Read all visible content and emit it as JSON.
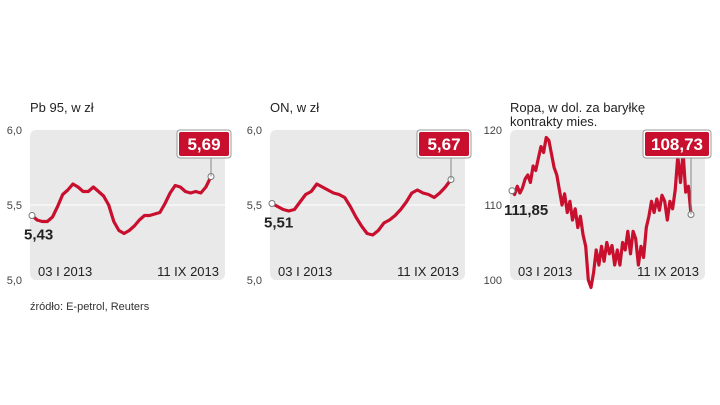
{
  "source": "źródło: E-petrol, Reuters",
  "colors": {
    "line": "#c8102e",
    "panel": "#e9e9e9",
    "grid": "#ffffff",
    "text": "#222222"
  },
  "chart_data": [
    {
      "type": "line",
      "title": "Pb 95, w zł",
      "yticks": [
        "6,0",
        "5,5",
        "5,0"
      ],
      "ylim": [
        5.0,
        6.0
      ],
      "x_labels": [
        "03 I 2013",
        "11 IX 2013"
      ],
      "start_value": 5.43,
      "start_label": "5,43",
      "end_value": 5.69,
      "end_label": "5,69",
      "series": [
        {
          "values": [
            5.43,
            5.4,
            5.39,
            5.39,
            5.42,
            5.49,
            5.57,
            5.6,
            5.64,
            5.62,
            5.59,
            5.59,
            5.62,
            5.59,
            5.56,
            5.5,
            5.39,
            5.33,
            5.31,
            5.33,
            5.36,
            5.4,
            5.43,
            5.43,
            5.44,
            5.45,
            5.51,
            5.58,
            5.63,
            5.62,
            5.59,
            5.58,
            5.59,
            5.58,
            5.62,
            5.69
          ]
        }
      ]
    },
    {
      "type": "line",
      "title": "ON, w zł",
      "yticks": [
        "6,0",
        "5,5",
        "5,0"
      ],
      "ylim": [
        5.0,
        6.0
      ],
      "x_labels": [
        "03 I 2013",
        "11 IX 2013"
      ],
      "start_value": 5.51,
      "start_label": "5,51",
      "end_value": 5.67,
      "end_label": "5,67",
      "series": [
        {
          "values": [
            5.51,
            5.49,
            5.47,
            5.46,
            5.47,
            5.52,
            5.57,
            5.59,
            5.64,
            5.62,
            5.6,
            5.58,
            5.57,
            5.55,
            5.49,
            5.42,
            5.36,
            5.31,
            5.3,
            5.33,
            5.38,
            5.4,
            5.43,
            5.47,
            5.52,
            5.58,
            5.6,
            5.58,
            5.57,
            5.55,
            5.58,
            5.62,
            5.67
          ]
        }
      ]
    },
    {
      "type": "line",
      "title": "Ropa, w dol. za baryłkę",
      "subtitle": "kontrakty mies.",
      "yticks": [
        "120",
        "110",
        "100"
      ],
      "ylim": [
        100,
        120
      ],
      "x_labels": [
        "03 I 2013",
        "11 IX 2013"
      ],
      "start_value": 111.85,
      "start_label": "111,85",
      "end_value": 108.73,
      "end_label": "108,73",
      "series": [
        {
          "values": [
            111.9,
            111.4,
            112.5,
            111.6,
            112.3,
            113.5,
            114.0,
            113.0,
            115.2,
            114.6,
            116.2,
            117.8,
            117.0,
            119.0,
            118.6,
            116.8,
            115.0,
            114.0,
            112.0,
            110.0,
            111.5,
            109.0,
            110.5,
            108.0,
            109.5,
            107.0,
            108.5,
            106.0,
            104.5,
            100.0,
            99.0,
            101.0,
            104.0,
            102.0,
            104.5,
            102.5,
            105.0,
            103.5,
            104.6,
            102.0,
            104.0,
            102.0,
            105.0,
            104.0,
            106.5,
            103.5,
            106.5,
            105.5,
            102.0,
            104.5,
            103.0,
            107.0,
            108.5,
            110.5,
            109.0,
            110.8,
            109.3,
            111.3,
            110.5,
            108.0,
            110.5,
            109.5,
            112.0,
            116.5,
            113.0,
            117.0,
            111.7,
            112.5,
            108.73
          ]
        }
      ]
    }
  ]
}
